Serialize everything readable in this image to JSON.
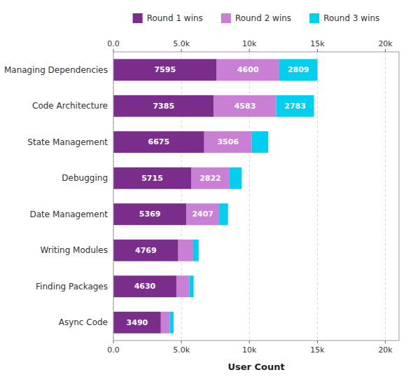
{
  "chart_data": {
    "type": "bar",
    "orientation": "horizontal",
    "stacked": true,
    "categories": [
      "Managing Dependencies",
      "Code Architecture",
      "State Management",
      "Debugging",
      "Date Management",
      "Writing Modules",
      "Finding Packages",
      "Async Code"
    ],
    "series": [
      {
        "name": "Round 1 wins",
        "color": "#7B2D8B",
        "values": [
          7595,
          7385,
          6675,
          5715,
          5369,
          4769,
          4630,
          3490
        ]
      },
      {
        "name": "Round 2 wins",
        "color": "#C87FD4",
        "values": [
          4600,
          4583,
          3506,
          2822,
          2407,
          1100,
          950,
          650
        ],
        "value_labels": [
          "4600",
          "4583",
          "3506",
          "2822",
          "2407",
          null,
          null,
          null
        ]
      },
      {
        "name": "Round 3 wins",
        "color": "#00CFEF",
        "values": [
          2809,
          2783,
          1200,
          900,
          650,
          400,
          320,
          280
        ],
        "value_labels": [
          "2809",
          "2783",
          null,
          null,
          null,
          null,
          null,
          null
        ]
      }
    ],
    "xlabel": "User Count",
    "xlim": [
      0,
      21000
    ],
    "xticks": [
      {
        "value": 0,
        "label": "0.0"
      },
      {
        "value": 5000,
        "label": "5.0k"
      },
      {
        "value": 10000,
        "label": "10k"
      },
      {
        "value": 15000,
        "label": "15k"
      },
      {
        "value": 20000,
        "label": "20k"
      }
    ],
    "grid": true,
    "legend": "top",
    "data_labels": true
  }
}
